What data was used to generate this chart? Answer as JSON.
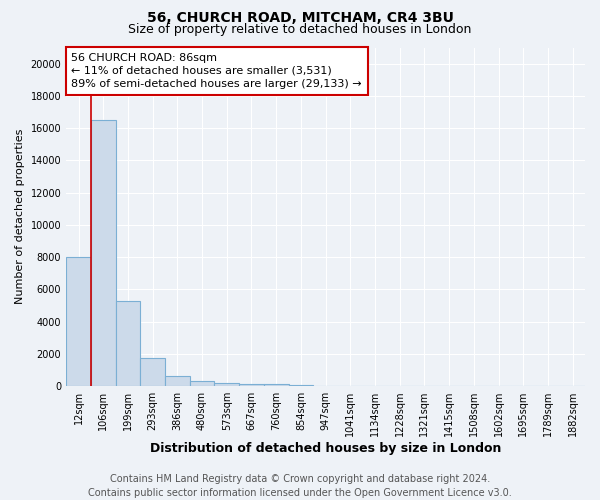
{
  "title": "56, CHURCH ROAD, MITCHAM, CR4 3BU",
  "subtitle": "Size of property relative to detached houses in London",
  "xlabel": "Distribution of detached houses by size in London",
  "ylabel": "Number of detached properties",
  "categories": [
    "12sqm",
    "106sqm",
    "199sqm",
    "293sqm",
    "386sqm",
    "480sqm",
    "573sqm",
    "667sqm",
    "760sqm",
    "854sqm",
    "947sqm",
    "1041sqm",
    "1134sqm",
    "1228sqm",
    "1321sqm",
    "1415sqm",
    "1508sqm",
    "1602sqm",
    "1695sqm",
    "1789sqm",
    "1882sqm"
  ],
  "values": [
    8000,
    16500,
    5300,
    1750,
    650,
    300,
    200,
    130,
    100,
    50,
    0,
    0,
    0,
    0,
    0,
    0,
    0,
    0,
    0,
    0,
    0
  ],
  "bar_color": "#ccdaea",
  "bar_edge_color": "#7bafd4",
  "red_line_x": 1,
  "annotation_line1": "56 CHURCH ROAD: 86sqm",
  "annotation_line2": "← 11% of detached houses are smaller (3,531)",
  "annotation_line3": "89% of semi-detached houses are larger (29,133) →",
  "annotation_box_facecolor": "#ffffff",
  "annotation_box_edgecolor": "#cc0000",
  "red_line_color": "#cc0000",
  "ylim": [
    0,
    21000
  ],
  "yticks": [
    0,
    2000,
    4000,
    6000,
    8000,
    10000,
    12000,
    14000,
    16000,
    18000,
    20000
  ],
  "footer_line1": "Contains HM Land Registry data © Crown copyright and database right 2024.",
  "footer_line2": "Contains public sector information licensed under the Open Government Licence v3.0.",
  "background_color": "#eef2f7",
  "grid_color": "#ffffff",
  "title_fontsize": 10,
  "subtitle_fontsize": 9,
  "xlabel_fontsize": 9,
  "ylabel_fontsize": 8,
  "tick_fontsize": 7,
  "footer_fontsize": 7,
  "annotation_fontsize": 8
}
